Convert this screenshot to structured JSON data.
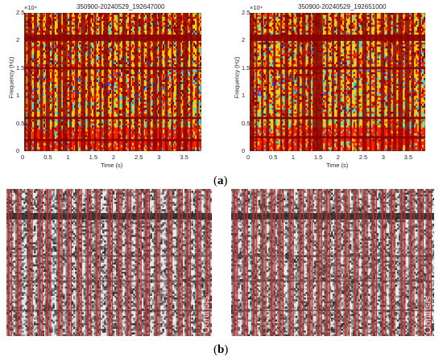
{
  "chart_data": [
    {
      "type": "heatmap",
      "panel": "a",
      "title": "350900-20240529_192647000",
      "xlabel": "Time (s)",
      "ylabel": "Frequency (Hz)",
      "y_exponent_label": "×10⁴",
      "xlim": [
        0,
        3.9
      ],
      "ylim": [
        0,
        25000
      ],
      "x_ticks": [
        "0",
        "0.5",
        "1",
        "1.5",
        "2",
        "2.5",
        "3",
        "3.5"
      ],
      "y_ticks": [
        "0",
        "0.5",
        "1",
        "1.5",
        "2",
        "2.5"
      ],
      "vertical_event_times_s": [
        0.02,
        0.12,
        0.25,
        0.38,
        0.52,
        0.64,
        0.78,
        0.9,
        1.02,
        1.15,
        1.3,
        1.43,
        1.56,
        1.68,
        1.8,
        1.95,
        2.08,
        2.2,
        2.33,
        2.47,
        2.6,
        2.74,
        2.88,
        3.0,
        3.13,
        3.26,
        3.4,
        3.55,
        3.68,
        3.82
      ],
      "horizontal_band_freqs_hz": [
        20500,
        15000,
        6000,
        2000
      ]
    },
    {
      "type": "heatmap",
      "panel": "a",
      "title": "350900-20240529_192651000",
      "xlabel": "Time (s)",
      "ylabel": "Frequency (Hz)",
      "y_exponent_label": "×10⁴",
      "xlim": [
        0,
        3.9
      ],
      "ylim": [
        0,
        25000
      ],
      "x_ticks": [
        "0",
        "0.5",
        "1",
        "1.5",
        "2",
        "2.5",
        "3",
        "3.5"
      ],
      "y_ticks": [
        "0",
        "0.5",
        "1",
        "1.5",
        "2",
        "2.5"
      ],
      "vertical_event_times_s": [
        0.05,
        0.15,
        0.28,
        0.4,
        0.55,
        0.7,
        0.82,
        0.95,
        1.08,
        1.2,
        1.33,
        1.45,
        1.5,
        1.55,
        1.6,
        1.72,
        1.85,
        1.98,
        2.12,
        2.25,
        2.4,
        2.55,
        2.68,
        2.8,
        2.95,
        3.1,
        3.22,
        3.35,
        3.5,
        3.62,
        3.78
      ],
      "horizontal_band_freqs_hz": [
        20500,
        15000,
        6000,
        2500
      ]
    }
  ],
  "panels_b": [
    {
      "line_color": "#e02020",
      "watermark": "Ooninsis",
      "detected_line_positions": [
        0.01,
        0.055,
        0.11,
        0.16,
        0.2,
        0.255,
        0.3,
        0.35,
        0.395,
        0.44,
        0.5,
        0.545,
        0.59,
        0.64,
        0.68,
        0.73,
        0.79,
        0.84,
        0.88,
        0.93,
        0.975
      ]
    },
    {
      "line_color": "#e02020",
      "watermark": "Ooninsis",
      "detected_line_positions": [
        0.015,
        0.065,
        0.11,
        0.155,
        0.2,
        0.24,
        0.29,
        0.34,
        0.385,
        0.43,
        0.47,
        0.52,
        0.565,
        0.61,
        0.655,
        0.7,
        0.745,
        0.79,
        0.84,
        0.885,
        0.93,
        0.97
      ]
    }
  ],
  "colors": {
    "hot": "#8b0000",
    "warm": "#ff2000",
    "mid": "#ffd000",
    "cool": "#40e0d0",
    "cold": "#1e64ff"
  },
  "labels": {
    "panel_a": "a",
    "panel_b": "b"
  }
}
